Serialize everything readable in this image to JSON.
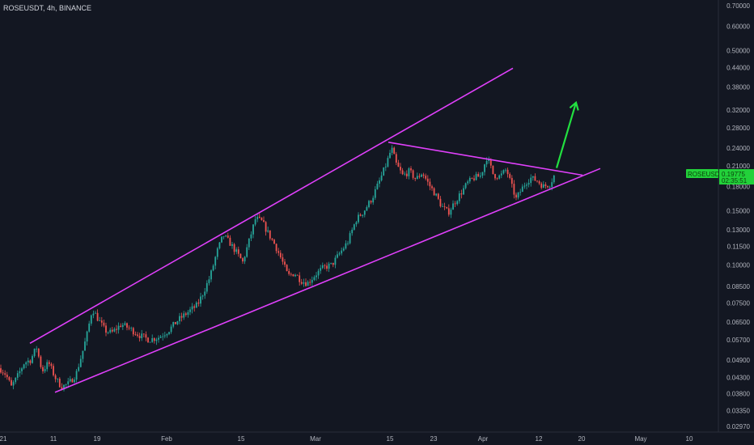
{
  "header": {
    "symbol_title": "ROSEUSDT, 4h, BINANCE"
  },
  "price_tag": {
    "symbol": "ROSEUSDT",
    "price": "0.19775",
    "countdown": "02:35:51",
    "color": "#22d13a"
  },
  "colors": {
    "background": "#131722",
    "up": "#26a69a",
    "down": "#ef5350",
    "pattern_lines": "#e040fb",
    "projection_arrow": "#22e040"
  },
  "chart_data": {
    "type": "candlestick",
    "title": "ROSEUSDT, 4h, BINANCE",
    "x_axis_labels": [
      "21",
      "11",
      "19",
      "Feb",
      "15",
      "Mar",
      "15",
      "23",
      "Apr",
      "12",
      "20",
      "May",
      "10"
    ],
    "y_axis_labels": [
      "0.70000",
      "0.60000",
      "0.50000",
      "0.44000",
      "0.38000",
      "0.32000",
      "0.28000",
      "0.24000",
      "0.21000",
      "0.18000",
      "0.15000",
      "0.13000",
      "0.11500",
      "0.10000",
      "0.08500",
      "0.07500",
      "0.06500",
      "0.05700",
      "0.04900",
      "0.04300",
      "0.03800",
      "0.03350",
      "0.02970"
    ],
    "y_scale": "log",
    "ylim": [
      0.0285,
      0.73
    ],
    "grid": false,
    "price_trajectory": [
      {
        "x": 0,
        "y": 0.046
      },
      {
        "x": 7,
        "y": 0.044
      },
      {
        "x": 14,
        "y": 0.04
      },
      {
        "x": 21,
        "y": 0.043
      },
      {
        "x": 30,
        "y": 0.048
      },
      {
        "x": 38,
        "y": 0.049
      },
      {
        "x": 45,
        "y": 0.054
      },
      {
        "x": 52,
        "y": 0.045
      },
      {
        "x": 60,
        "y": 0.048
      },
      {
        "x": 68,
        "y": 0.043
      },
      {
        "x": 76,
        "y": 0.04
      },
      {
        "x": 85,
        "y": 0.041
      },
      {
        "x": 94,
        "y": 0.044
      },
      {
        "x": 102,
        "y": 0.052
      },
      {
        "x": 108,
        "y": 0.06
      },
      {
        "x": 114,
        "y": 0.072
      },
      {
        "x": 122,
        "y": 0.066
      },
      {
        "x": 130,
        "y": 0.061
      },
      {
        "x": 138,
        "y": 0.06
      },
      {
        "x": 150,
        "y": 0.064
      },
      {
        "x": 160,
        "y": 0.062
      },
      {
        "x": 172,
        "y": 0.059
      },
      {
        "x": 184,
        "y": 0.057
      },
      {
        "x": 196,
        "y": 0.058
      },
      {
        "x": 208,
        "y": 0.061
      },
      {
        "x": 220,
        "y": 0.066
      },
      {
        "x": 232,
        "y": 0.07
      },
      {
        "x": 244,
        "y": 0.074
      },
      {
        "x": 252,
        "y": 0.082
      },
      {
        "x": 260,
        "y": 0.092
      },
      {
        "x": 268,
        "y": 0.11
      },
      {
        "x": 276,
        "y": 0.125
      },
      {
        "x": 284,
        "y": 0.118
      },
      {
        "x": 292,
        "y": 0.11
      },
      {
        "x": 300,
        "y": 0.102
      },
      {
        "x": 308,
        "y": 0.12
      },
      {
        "x": 316,
        "y": 0.142
      },
      {
        "x": 324,
        "y": 0.138
      },
      {
        "x": 332,
        "y": 0.126
      },
      {
        "x": 340,
        "y": 0.116
      },
      {
        "x": 348,
        "y": 0.104
      },
      {
        "x": 356,
        "y": 0.092
      },
      {
        "x": 364,
        "y": 0.094
      },
      {
        "x": 372,
        "y": 0.089
      },
      {
        "x": 380,
        "y": 0.087
      },
      {
        "x": 390,
        "y": 0.093
      },
      {
        "x": 400,
        "y": 0.098
      },
      {
        "x": 410,
        "y": 0.1
      },
      {
        "x": 420,
        "y": 0.109
      },
      {
        "x": 430,
        "y": 0.119
      },
      {
        "x": 440,
        "y": 0.14
      },
      {
        "x": 450,
        "y": 0.15
      },
      {
        "x": 460,
        "y": 0.165
      },
      {
        "x": 470,
        "y": 0.19
      },
      {
        "x": 478,
        "y": 0.215
      },
      {
        "x": 484,
        "y": 0.24
      },
      {
        "x": 490,
        "y": 0.212
      },
      {
        "x": 498,
        "y": 0.195
      },
      {
        "x": 506,
        "y": 0.202
      },
      {
        "x": 514,
        "y": 0.19
      },
      {
        "x": 522,
        "y": 0.2
      },
      {
        "x": 530,
        "y": 0.183
      },
      {
        "x": 538,
        "y": 0.17
      },
      {
        "x": 546,
        "y": 0.155
      },
      {
        "x": 554,
        "y": 0.148
      },
      {
        "x": 562,
        "y": 0.16
      },
      {
        "x": 570,
        "y": 0.172
      },
      {
        "x": 578,
        "y": 0.185
      },
      {
        "x": 586,
        "y": 0.192
      },
      {
        "x": 594,
        "y": 0.195
      },
      {
        "x": 602,
        "y": 0.225
      },
      {
        "x": 610,
        "y": 0.196
      },
      {
        "x": 618,
        "y": 0.194
      },
      {
        "x": 626,
        "y": 0.205
      },
      {
        "x": 632,
        "y": 0.182
      },
      {
        "x": 638,
        "y": 0.164
      },
      {
        "x": 644,
        "y": 0.175
      },
      {
        "x": 650,
        "y": 0.186
      },
      {
        "x": 656,
        "y": 0.192
      },
      {
        "x": 664,
        "y": 0.188
      },
      {
        "x": 672,
        "y": 0.18
      },
      {
        "x": 680,
        "y": 0.184
      },
      {
        "x": 686,
        "y": 0.19775
      }
    ],
    "drawings": [
      {
        "name": "upper-channel-line",
        "from": {
          "x": 37,
          "y": 0.0555
        },
        "to": {
          "x": 634,
          "y": 0.4375
        }
      },
      {
        "name": "lower-channel-line",
        "from": {
          "x": 68,
          "y": 0.0384
        },
        "to": {
          "x": 742,
          "y": 0.206
        }
      },
      {
        "name": "descending-resistance-line",
        "from": {
          "x": 480,
          "y": 0.251
        },
        "to": {
          "x": 720,
          "y": 0.196
        }
      },
      {
        "name": "breakout-arrow",
        "from": {
          "x": 688,
          "y": 0.207
        },
        "to": {
          "x": 712,
          "y": 0.338
        }
      }
    ],
    "legend": "none"
  }
}
